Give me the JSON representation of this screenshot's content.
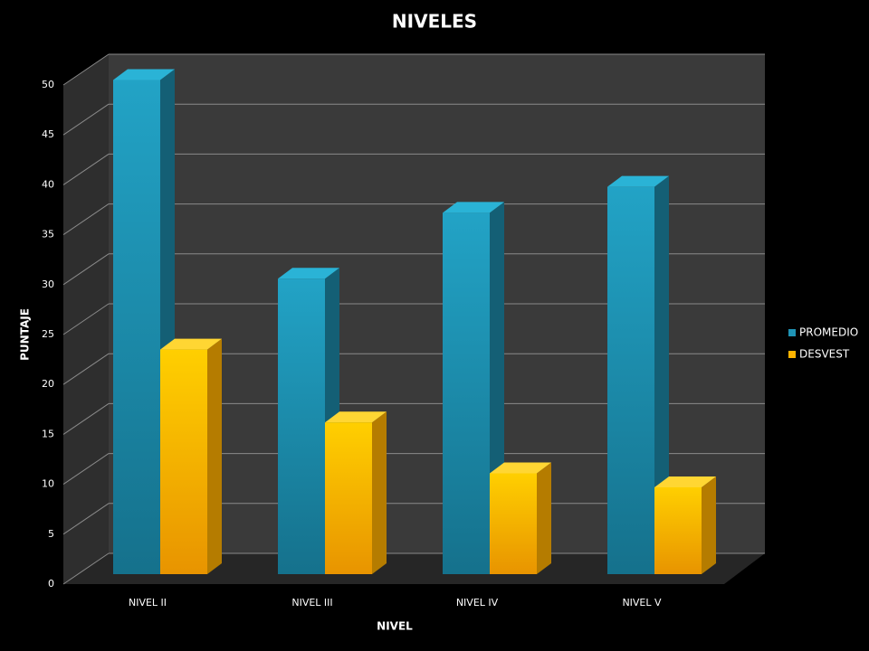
{
  "chart_data": {
    "type": "bar3d",
    "title": "NIVELES",
    "x_label": "NIVEL",
    "y_label": "PUNTAJE",
    "categories": [
      "NIVEL II",
      "NIVEL III",
      "NIVEL IV",
      "NIVEL V"
    ],
    "series": [
      {
        "name": "PROMEDIO",
        "color": "#1f93b5",
        "values": [
          49.5,
          29.6,
          36.2,
          38.8
        ]
      },
      {
        "name": "DESVEST",
        "color": "#ffb400",
        "values": [
          22.5,
          15.2,
          10.1,
          8.7
        ]
      }
    ],
    "ylim": [
      0,
      50
    ],
    "yticks": [
      0,
      5,
      10,
      15,
      20,
      25,
      30,
      35,
      40,
      45,
      50
    ],
    "grid": true,
    "legend": "right"
  }
}
